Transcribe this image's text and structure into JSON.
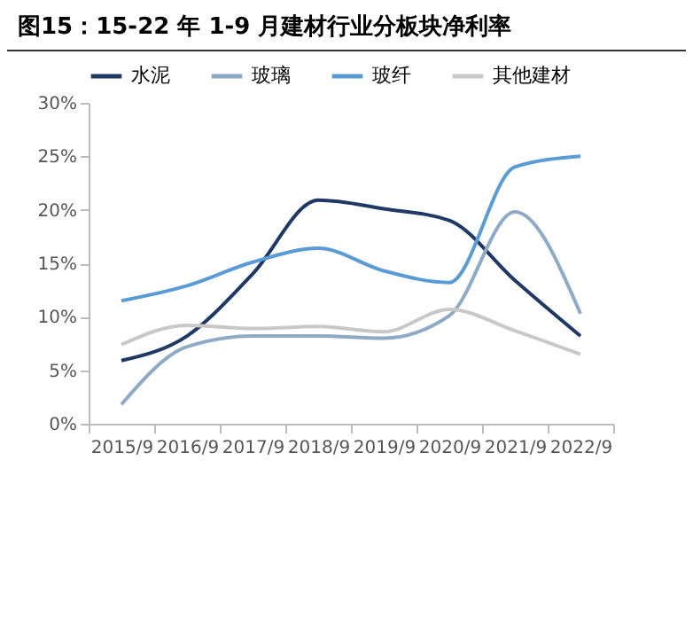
{
  "chart_data": {
    "type": "line",
    "title": "图15：15-22 年 1-9 月建材行业分板块净利率",
    "categories": [
      "2015/9",
      "2016/9",
      "2017/9",
      "2018/9",
      "2019/9",
      "2020/9",
      "2021/9",
      "2022/9"
    ],
    "series": [
      {
        "name": "水泥",
        "color": "#1f3864",
        "values": [
          5.9,
          8.2,
          14,
          20.9,
          20.1,
          19,
          13.4,
          8.2
        ]
      },
      {
        "name": "玻璃",
        "color": "#8faac4",
        "values": [
          1.8,
          7.2,
          8.2,
          8.2,
          8,
          10.1,
          19.8,
          10.3
        ]
      },
      {
        "name": "玻纤",
        "color": "#5b9bd5",
        "values": [
          11.5,
          12.9,
          15.1,
          16.4,
          14.3,
          13.2,
          24,
          25
        ]
      },
      {
        "name": "其他建材",
        "color": "#c8c8c8",
        "values": [
          7.4,
          9.2,
          8.9,
          9.1,
          8.6,
          10.7,
          8.7,
          6.5
        ]
      }
    ],
    "ylim": [
      0,
      30
    ],
    "yticks": [
      {
        "value": 0,
        "label": "0%"
      },
      {
        "value": 5,
        "label": "5%"
      },
      {
        "value": 10,
        "label": "10%"
      },
      {
        "value": 15,
        "label": "15%"
      },
      {
        "value": 20,
        "label": "20%"
      },
      {
        "value": 25,
        "label": "25%"
      },
      {
        "value": 30,
        "label": "30%"
      }
    ],
    "grid": false,
    "legend": "top",
    "marker": "none",
    "line_style": "solid"
  }
}
